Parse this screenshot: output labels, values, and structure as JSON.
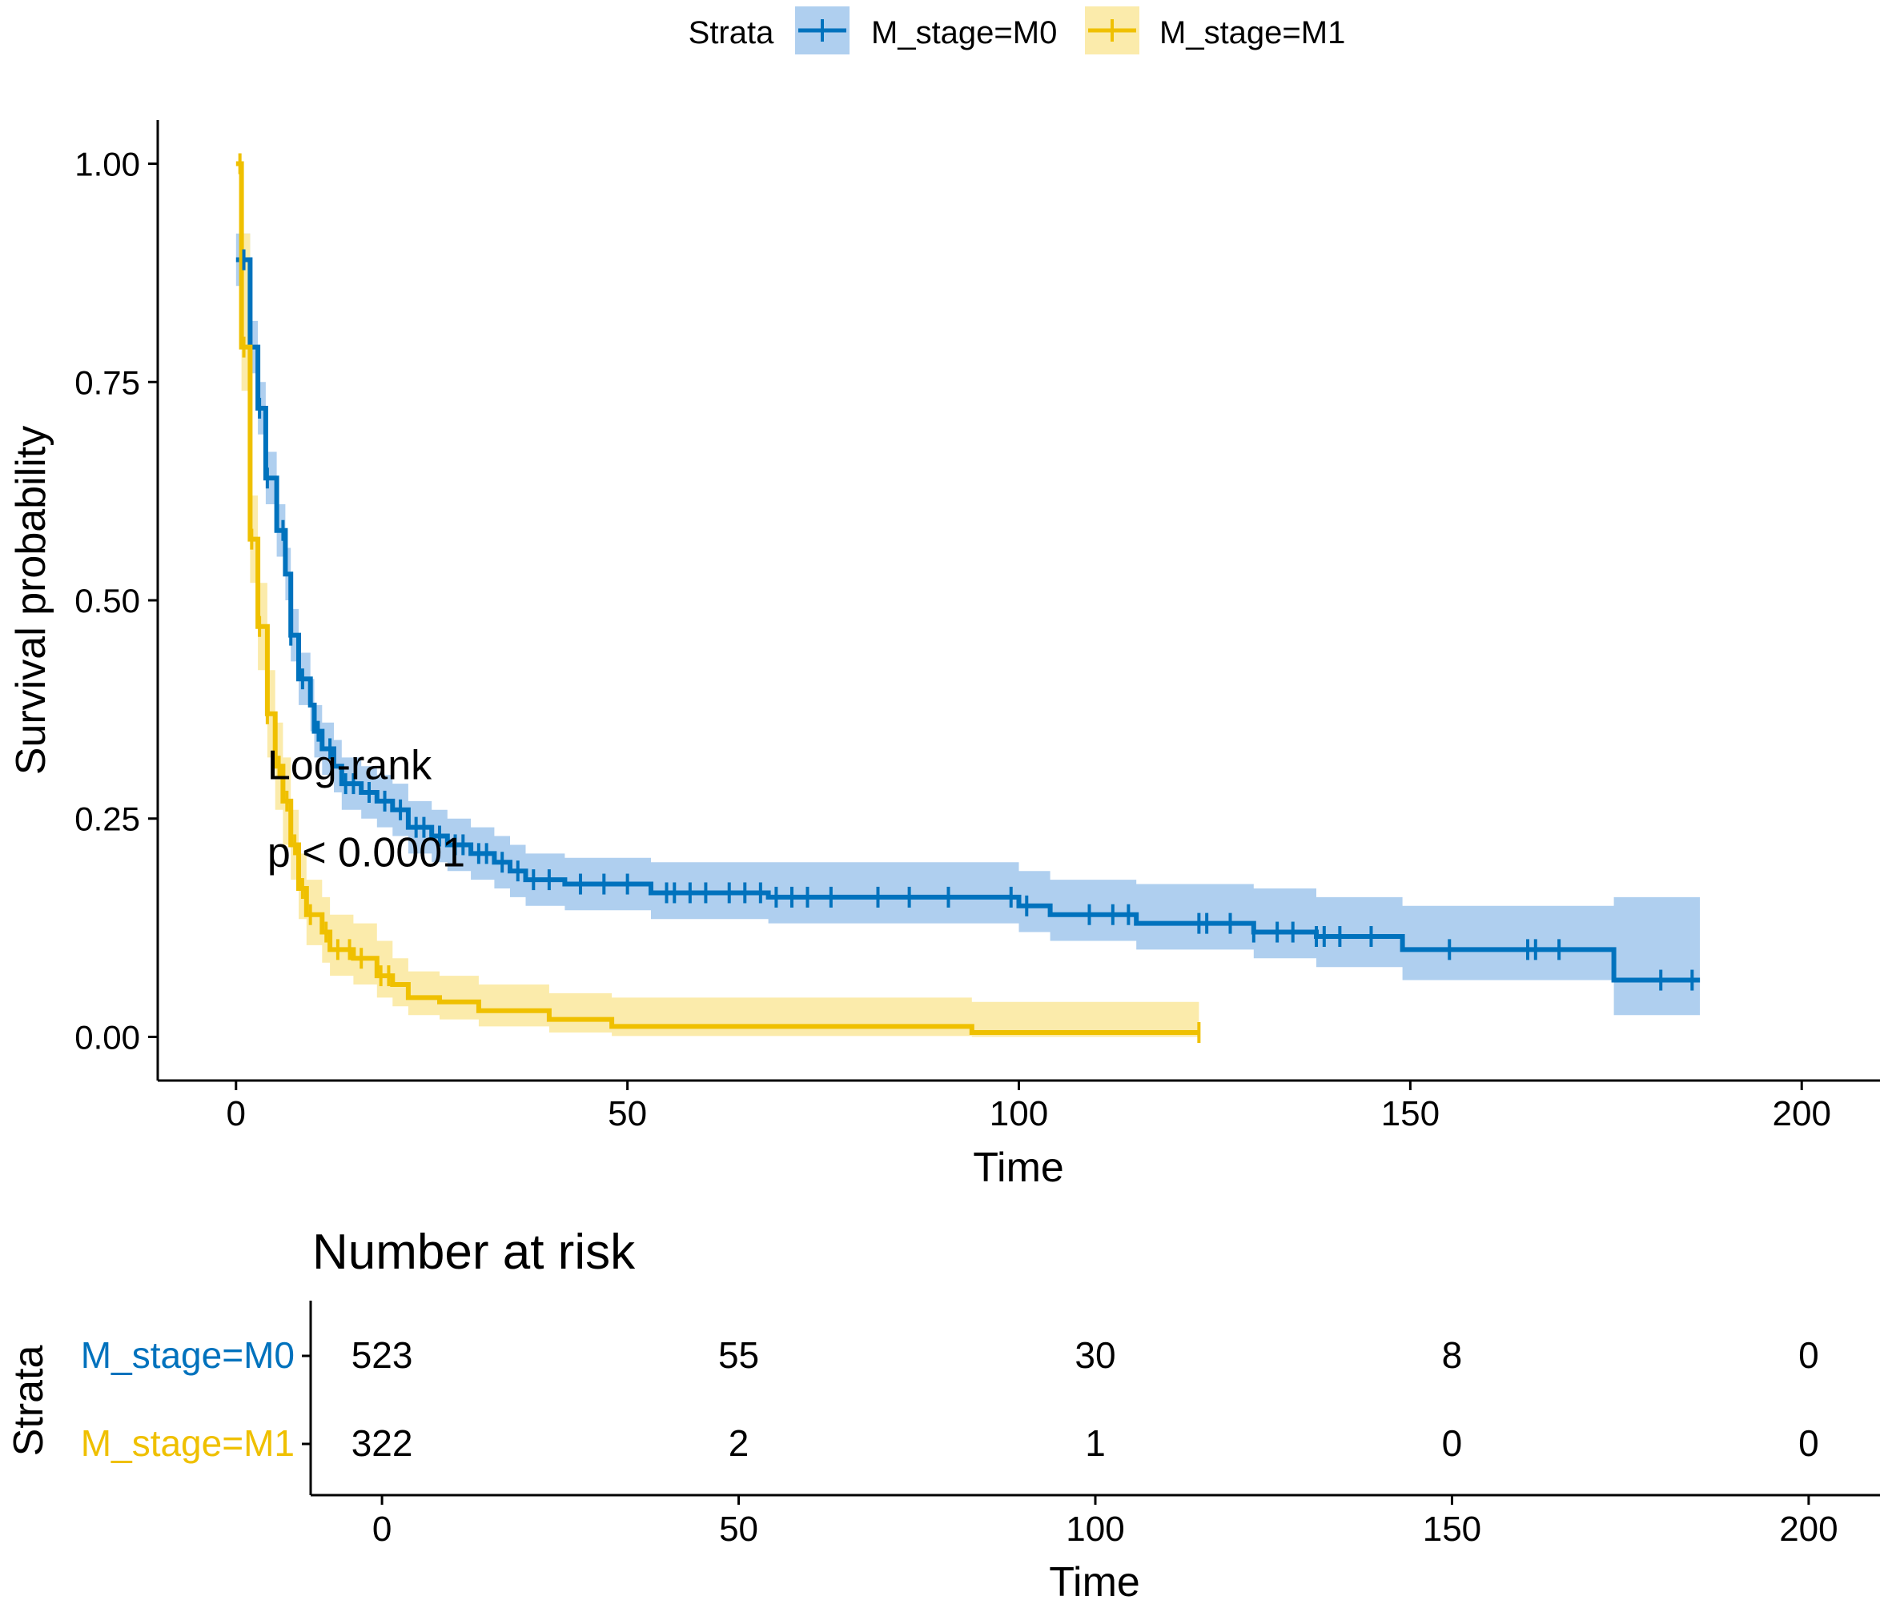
{
  "chart_data": {
    "type": "line",
    "subtype": "kaplan-meier",
    "xlabel": "Time",
    "ylabel": "Survival probability",
    "xlim": [
      -10,
      210
    ],
    "ylim": [
      -0.05,
      1.05
    ],
    "x_ticks": [
      0,
      50,
      100,
      150,
      200
    ],
    "x_tick_labels": [
      "0",
      "50",
      "100",
      "150",
      "200"
    ],
    "y_ticks": [
      0,
      0.25,
      0.5,
      0.75,
      1
    ],
    "y_tick_labels": [
      "0.00",
      "0.25",
      "0.50",
      "0.75",
      "1.00"
    ],
    "grid": false,
    "legend": {
      "title": "Strata",
      "position": "top",
      "entries": [
        "M_stage=M0",
        "M_stage=M1"
      ]
    },
    "annotation": {
      "line1": "Log-rank",
      "line2": "p < 0.0001",
      "x": 4,
      "y1": 0.295,
      "y2": 0.195
    },
    "series": [
      {
        "name": "M_stage=M0",
        "color": "#0072BD",
        "band_color": "#AFCFEF",
        "steps": [
          [
            0,
            0.89
          ],
          [
            1,
            0.89
          ],
          [
            1.8,
            0.79
          ],
          [
            2.8,
            0.72
          ],
          [
            3.8,
            0.64
          ],
          [
            5.2,
            0.58
          ],
          [
            6.3,
            0.53
          ],
          [
            7,
            0.46
          ],
          [
            8,
            0.41
          ],
          [
            9.5,
            0.38
          ],
          [
            10,
            0.35
          ],
          [
            11,
            0.33
          ],
          [
            12.5,
            0.31
          ],
          [
            13.5,
            0.29
          ],
          [
            16,
            0.28
          ],
          [
            18,
            0.27
          ],
          [
            20,
            0.26
          ],
          [
            22,
            0.24
          ],
          [
            25,
            0.23
          ],
          [
            27,
            0.22
          ],
          [
            30,
            0.21
          ],
          [
            33,
            0.2
          ],
          [
            35,
            0.19
          ],
          [
            37,
            0.18
          ],
          [
            42,
            0.175
          ],
          [
            53,
            0.165
          ],
          [
            68,
            0.16
          ],
          [
            100,
            0.15
          ],
          [
            104,
            0.14
          ],
          [
            115,
            0.13
          ],
          [
            130,
            0.12
          ],
          [
            138,
            0.115
          ],
          [
            149,
            0.1
          ],
          [
            176,
            0.065
          ],
          [
            187,
            0.065
          ]
        ],
        "lower": [
          [
            0,
            0.86
          ],
          [
            1,
            0.86
          ],
          [
            1.8,
            0.76
          ],
          [
            2.8,
            0.69
          ],
          [
            3.8,
            0.61
          ],
          [
            5.2,
            0.55
          ],
          [
            6.3,
            0.5
          ],
          [
            7,
            0.43
          ],
          [
            8,
            0.38
          ],
          [
            9.5,
            0.35
          ],
          [
            10,
            0.32
          ],
          [
            11,
            0.3
          ],
          [
            12.5,
            0.28
          ],
          [
            13.5,
            0.26
          ],
          [
            16,
            0.25
          ],
          [
            18,
            0.24
          ],
          [
            20,
            0.23
          ],
          [
            22,
            0.21
          ],
          [
            25,
            0.2
          ],
          [
            27,
            0.19
          ],
          [
            30,
            0.18
          ],
          [
            33,
            0.17
          ],
          [
            35,
            0.16
          ],
          [
            37,
            0.15
          ],
          [
            42,
            0.145
          ],
          [
            53,
            0.135
          ],
          [
            68,
            0.13
          ],
          [
            100,
            0.12
          ],
          [
            104,
            0.11
          ],
          [
            115,
            0.1
          ],
          [
            130,
            0.09
          ],
          [
            138,
            0.08
          ],
          [
            149,
            0.065
          ],
          [
            176,
            0.025
          ],
          [
            187,
            0.025
          ]
        ],
        "upper": [
          [
            0,
            0.92
          ],
          [
            1,
            0.92
          ],
          [
            1.8,
            0.82
          ],
          [
            2.8,
            0.75
          ],
          [
            3.8,
            0.67
          ],
          [
            5.2,
            0.61
          ],
          [
            6.3,
            0.56
          ],
          [
            7,
            0.49
          ],
          [
            8,
            0.44
          ],
          [
            9.5,
            0.41
          ],
          [
            10,
            0.38
          ],
          [
            11,
            0.36
          ],
          [
            12.5,
            0.34
          ],
          [
            13.5,
            0.32
          ],
          [
            16,
            0.31
          ],
          [
            18,
            0.3
          ],
          [
            20,
            0.29
          ],
          [
            22,
            0.27
          ],
          [
            25,
            0.26
          ],
          [
            27,
            0.25
          ],
          [
            30,
            0.24
          ],
          [
            33,
            0.23
          ],
          [
            35,
            0.22
          ],
          [
            37,
            0.21
          ],
          [
            42,
            0.205
          ],
          [
            53,
            0.2
          ],
          [
            68,
            0.2
          ],
          [
            100,
            0.19
          ],
          [
            104,
            0.18
          ],
          [
            115,
            0.175
          ],
          [
            130,
            0.17
          ],
          [
            138,
            0.16
          ],
          [
            149,
            0.15
          ],
          [
            176,
            0.16
          ],
          [
            187,
            0.16
          ]
        ],
        "censor_times": [
          1,
          3,
          4,
          6,
          7,
          8.5,
          10.5,
          12,
          14,
          15,
          17,
          19,
          21,
          23,
          24,
          26,
          28,
          29,
          31,
          32,
          34,
          36,
          38,
          40,
          44,
          47,
          50,
          55,
          56,
          58,
          60,
          63,
          65,
          67,
          69,
          71,
          73,
          76,
          82,
          86,
          91,
          99,
          101,
          109,
          112,
          114,
          123,
          124,
          127,
          130,
          133,
          135,
          138,
          139,
          141,
          145,
          155,
          165,
          166,
          169,
          182,
          186
        ]
      },
      {
        "name": "M_stage=M1",
        "color": "#EFC000",
        "band_color": "#FBEBAB",
        "steps": [
          [
            0,
            1
          ],
          [
            0.7,
            1
          ],
          [
            0.7,
            0.79
          ],
          [
            1.8,
            0.79
          ],
          [
            1.8,
            0.57
          ],
          [
            2.8,
            0.57
          ],
          [
            2.8,
            0.47
          ],
          [
            3,
            0.47
          ],
          [
            4,
            0.37
          ],
          [
            5,
            0.31
          ],
          [
            6,
            0.27
          ],
          [
            7,
            0.22
          ],
          [
            8,
            0.17
          ],
          [
            9,
            0.14
          ],
          [
            11,
            0.12
          ],
          [
            12,
            0.1
          ],
          [
            15,
            0.09
          ],
          [
            18,
            0.07
          ],
          [
            20,
            0.06
          ],
          [
            22,
            0.045
          ],
          [
            26,
            0.04
          ],
          [
            31,
            0.03
          ],
          [
            40,
            0.02
          ],
          [
            48,
            0.012
          ],
          [
            94,
            0.005
          ],
          [
            123,
            0.005
          ]
        ],
        "lower": [
          [
            0,
            1
          ],
          [
            0.7,
            1
          ],
          [
            0.7,
            0.74
          ],
          [
            1.8,
            0.74
          ],
          [
            1.8,
            0.52
          ],
          [
            2.8,
            0.52
          ],
          [
            2.8,
            0.42
          ],
          [
            3,
            0.42
          ],
          [
            4,
            0.32
          ],
          [
            5,
            0.26
          ],
          [
            6,
            0.22
          ],
          [
            7,
            0.18
          ],
          [
            8,
            0.135
          ],
          [
            9,
            0.105
          ],
          [
            11,
            0.085
          ],
          [
            12,
            0.07
          ],
          [
            15,
            0.06
          ],
          [
            18,
            0.045
          ],
          [
            20,
            0.035
          ],
          [
            22,
            0.025
          ],
          [
            26,
            0.02
          ],
          [
            31,
            0.012
          ],
          [
            40,
            0.005
          ],
          [
            48,
            0.001
          ],
          [
            94,
            0
          ],
          [
            123,
            0
          ]
        ],
        "upper": [
          [
            0,
            1
          ],
          [
            0.7,
            1
          ],
          [
            0.7,
            0.92
          ],
          [
            1.8,
            0.92
          ],
          [
            1.8,
            0.62
          ],
          [
            2.8,
            0.62
          ],
          [
            2.8,
            0.52
          ],
          [
            3,
            0.52
          ],
          [
            4,
            0.42
          ],
          [
            5,
            0.36
          ],
          [
            6,
            0.32
          ],
          [
            7,
            0.26
          ],
          [
            8,
            0.21
          ],
          [
            9,
            0.18
          ],
          [
            11,
            0.16
          ],
          [
            12,
            0.14
          ],
          [
            15,
            0.13
          ],
          [
            18,
            0.11
          ],
          [
            20,
            0.09
          ],
          [
            22,
            0.075
          ],
          [
            26,
            0.07
          ],
          [
            31,
            0.06
          ],
          [
            40,
            0.05
          ],
          [
            48,
            0.045
          ],
          [
            94,
            0.04
          ],
          [
            123,
            0.04
          ]
        ],
        "censor_times": [
          0.5,
          1,
          2,
          3,
          4,
          5.5,
          6.5,
          7.5,
          8.5,
          9.5,
          11.5,
          13,
          14.5,
          16,
          18.5,
          19.5,
          123
        ]
      }
    ],
    "risk_table": {
      "title": "Number at risk",
      "xlabel": "Time",
      "ylabel": "Strata",
      "times": [
        "0",
        "50",
        "100",
        "150",
        "200"
      ],
      "rows": [
        {
          "name": "M_stage=M0",
          "values": [
            "523",
            "55",
            "30",
            "8",
            "0"
          ]
        },
        {
          "name": "M_stage=M1",
          "values": [
            "322",
            "2",
            "1",
            "0",
            "0"
          ]
        }
      ]
    }
  }
}
